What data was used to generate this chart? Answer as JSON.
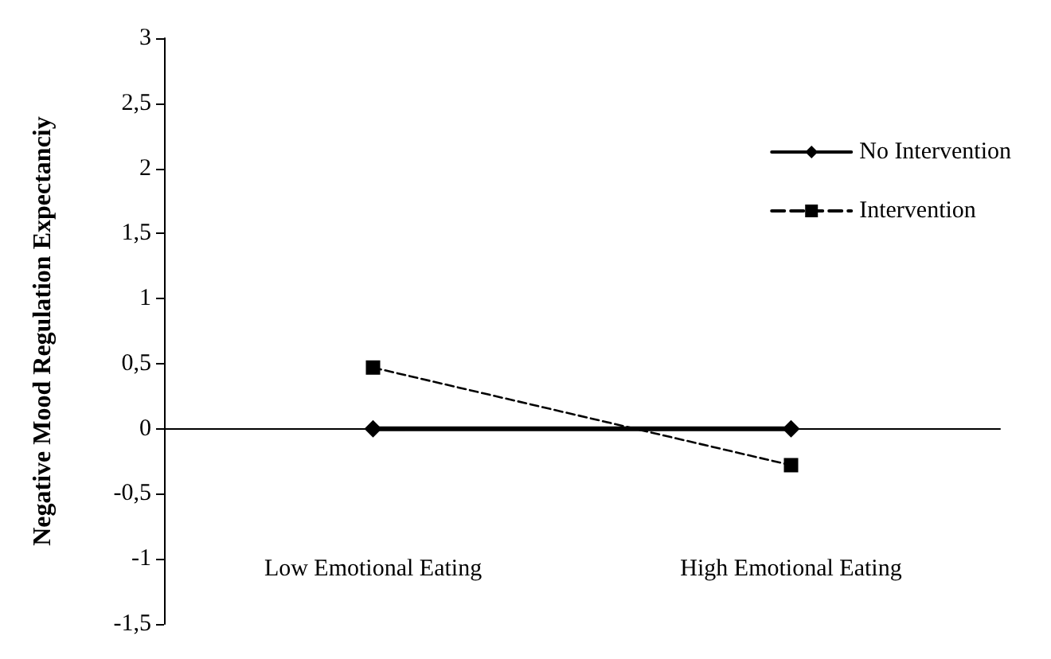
{
  "chart_data": {
    "type": "line",
    "ylabel": "Negative Mood Regulation Expectanciy",
    "categories": [
      "Low Emotional Eating",
      "High Emotional Eating"
    ],
    "series": [
      {
        "name": "No Intervention",
        "color": "#000000",
        "values": [
          0,
          0
        ],
        "marker": "diamond",
        "line_style": "solid"
      },
      {
        "name": "Intervention",
        "color": "#000000",
        "values": [
          0.47,
          -0.28
        ],
        "marker": "square",
        "line_style": "dashed"
      }
    ],
    "ylim": [
      -1.5,
      3
    ],
    "yticks": [
      {
        "value": -1.5,
        "label": "-1,5"
      },
      {
        "value": -1,
        "label": "-1"
      },
      {
        "value": -0.5,
        "label": "-0,5"
      },
      {
        "value": 0,
        "label": "0"
      },
      {
        "value": 0.5,
        "label": "0,5"
      },
      {
        "value": 1,
        "label": "1"
      },
      {
        "value": 1.5,
        "label": "1,5"
      },
      {
        "value": 2,
        "label": "2"
      },
      {
        "value": 2.5,
        "label": "2,5"
      },
      {
        "value": 3,
        "label": "3"
      }
    ],
    "grid": false,
    "legend": "top right"
  }
}
